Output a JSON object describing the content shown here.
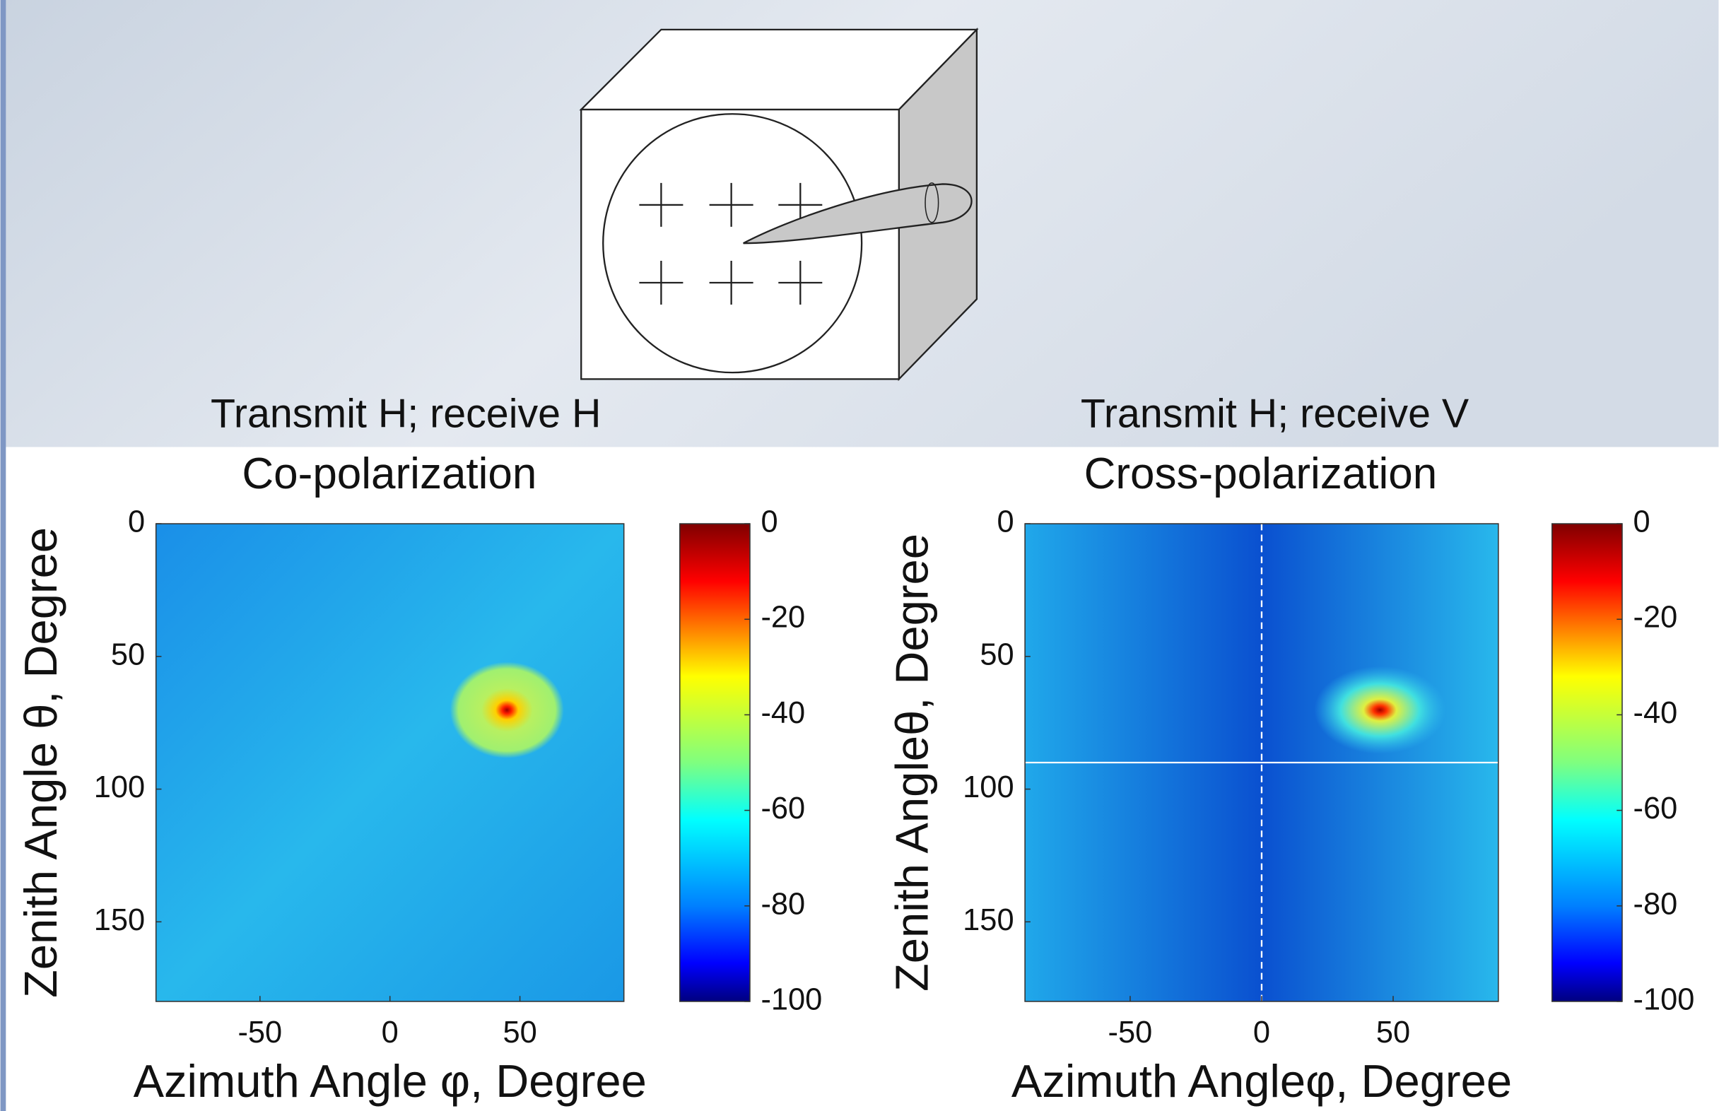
{
  "chart_data": [
    {
      "type": "heatmap",
      "subtitle": "Transmit H; receive H",
      "title": "Co-polarization",
      "xlabel": "Azimuth Angle φ, Degree",
      "ylabel": "Zenith Angle θ, Degree",
      "xlim": [
        -90,
        90
      ],
      "xticks": [
        -50,
        0,
        50
      ],
      "ylim": [
        0,
        180
      ],
      "yticks": [
        0,
        50,
        100,
        150
      ],
      "y_inverted": true,
      "colormap": "jet",
      "clim": [
        -100,
        0
      ],
      "cticks": [
        0,
        -20,
        -40,
        -60,
        -80,
        -100
      ]
    },
    {
      "type": "heatmap",
      "subtitle": "Transmit H; receive V",
      "title": "Cross-polarization",
      "xlabel": "Azimuth Angleφ, Degree",
      "ylabel": "Zenith Angleθ, Degree",
      "xlim": [
        -90,
        90
      ],
      "xticks": [
        -50,
        0,
        50
      ],
      "ylim": [
        0,
        180
      ],
      "yticks": [
        0,
        50,
        100,
        150
      ],
      "y_inverted": true,
      "colormap": "jet",
      "clim": [
        -100,
        0
      ],
      "cticks": [
        0,
        -20,
        -40,
        -60,
        -80,
        -100
      ]
    }
  ]
}
